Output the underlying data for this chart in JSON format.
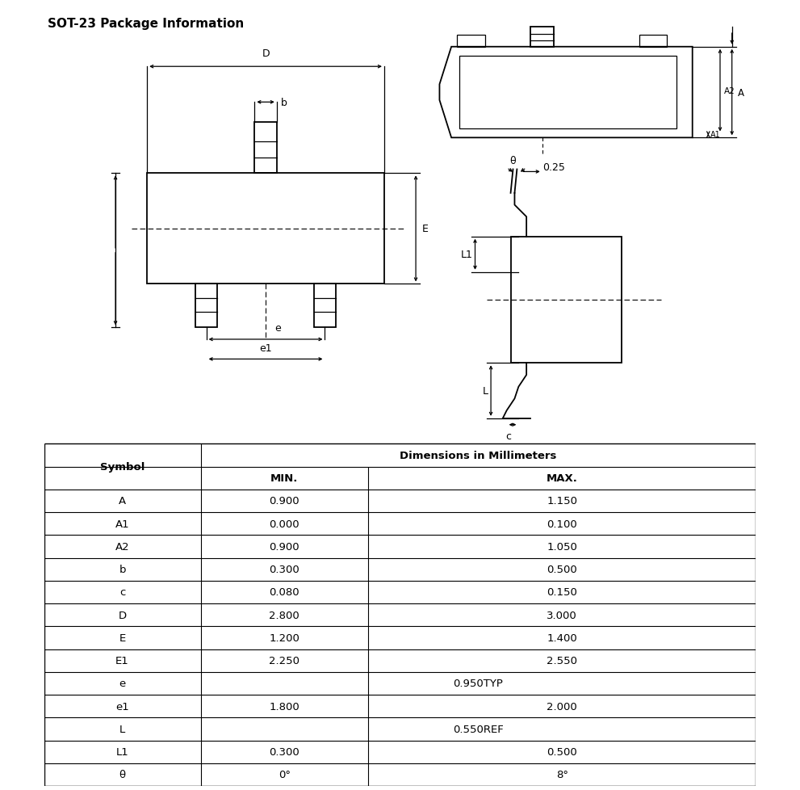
{
  "title": "SOT-23 Package Information",
  "title_fontsize": 11,
  "table_header": "Dimensions in Millimeters",
  "col_symbol": "Symbol",
  "col_min": "MIN.",
  "col_max": "MAX.",
  "rows": [
    {
      "symbol": "A",
      "min": "0.900",
      "max": "1.150"
    },
    {
      "symbol": "A1",
      "min": "0.000",
      "max": "0.100"
    },
    {
      "symbol": "A2",
      "min": "0.900",
      "max": "1.050"
    },
    {
      "symbol": "b",
      "min": "0.300",
      "max": "0.500"
    },
    {
      "symbol": "c",
      "min": "0.080",
      "max": "0.150"
    },
    {
      "symbol": "D",
      "min": "2.800",
      "max": "3.000"
    },
    {
      "symbol": "E",
      "min": "1.200",
      "max": "1.400"
    },
    {
      "symbol": "E1",
      "min": "2.250",
      "max": "2.550"
    },
    {
      "symbol": "e",
      "min": "",
      "max": "0.950TYP"
    },
    {
      "symbol": "e1",
      "min": "1.800",
      "max": "2.000"
    },
    {
      "symbol": "L",
      "min": "",
      "max": "0.550REF"
    },
    {
      "symbol": "L1",
      "min": "0.300",
      "max": "0.500"
    },
    {
      "symbol": "θ",
      "min": "0°",
      "max": "8°"
    }
  ],
  "bg_color": "#ffffff",
  "line_color": "#000000",
  "text_color": "#000000"
}
